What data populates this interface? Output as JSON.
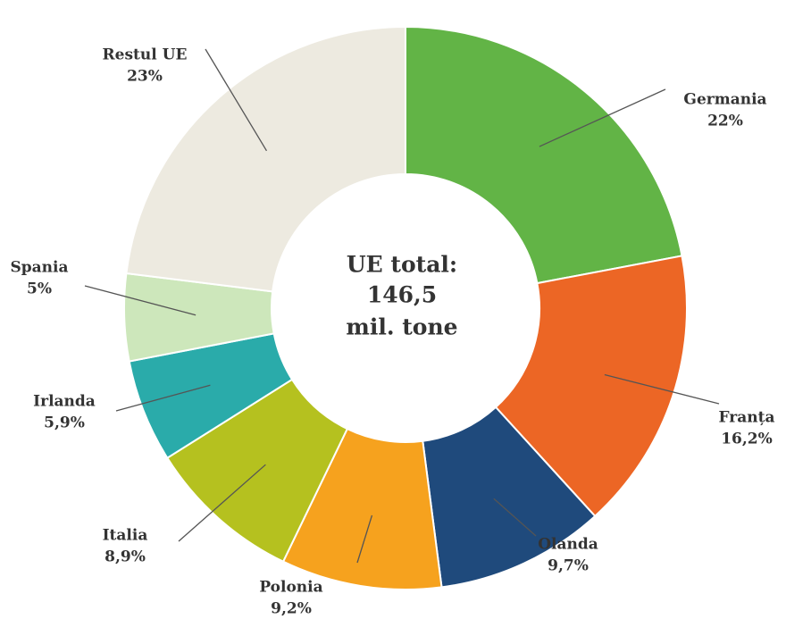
{
  "chart_data": {
    "type": "donut",
    "categories": [
      "Germania",
      "Franța",
      "Olanda",
      "Polonia",
      "Italia",
      "Irlanda",
      "Spania",
      "Restul UE"
    ],
    "values": [
      22,
      16.2,
      9.7,
      9.2,
      8.9,
      5.9,
      5,
      23
    ],
    "value_labels": [
      "22%",
      "16,2%",
      "9,7%",
      "9,2%",
      "8,9%",
      "5,9%",
      "5%",
      "23%"
    ],
    "colors": [
      "#62b446",
      "#ec6625",
      "#1f4a7c",
      "#f6a21e",
      "#b5c11f",
      "#2aabaa",
      "#cde7bb",
      "#edeae0"
    ],
    "center_text": [
      "UE total:",
      "146,5",
      "mil. tone"
    ]
  }
}
